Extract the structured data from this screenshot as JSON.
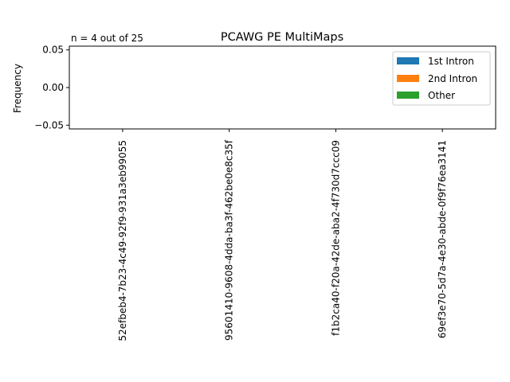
{
  "chart_data": {
    "type": "bar",
    "title": "PCAWG PE MultiMaps",
    "annotation": "n = 4 out of 25",
    "xlabel": "",
    "ylabel": "Frequency",
    "categories": [
      "52efbeb4-7b23-4c49-92f9-931a3eb99055",
      "95601410-9608-4dda-ba3f-462be0e8c35f",
      "f1b2ca40-f20a-42de-aba2-4f730d7ccc09",
      "69ef3e70-5d7a-4e30-abde-0f9f76ea3141"
    ],
    "series": [
      {
        "name": "1st Intron",
        "color": "#1f77b4",
        "values": [
          0,
          0,
          0,
          0
        ]
      },
      {
        "name": "2nd Intron",
        "color": "#ff7f0e",
        "values": [
          0,
          0,
          0,
          0
        ]
      },
      {
        "name": "Other",
        "color": "#2ca02c",
        "values": [
          0,
          0,
          0,
          0
        ]
      }
    ],
    "ylim": [
      -0.055,
      0.055
    ],
    "yticks": [
      {
        "value": 0.05,
        "label": "0.05"
      },
      {
        "value": 0.0,
        "label": "0.00"
      },
      {
        "value": -0.05,
        "label": "−0.05"
      }
    ],
    "legend_position": "top-right",
    "grid": false
  }
}
